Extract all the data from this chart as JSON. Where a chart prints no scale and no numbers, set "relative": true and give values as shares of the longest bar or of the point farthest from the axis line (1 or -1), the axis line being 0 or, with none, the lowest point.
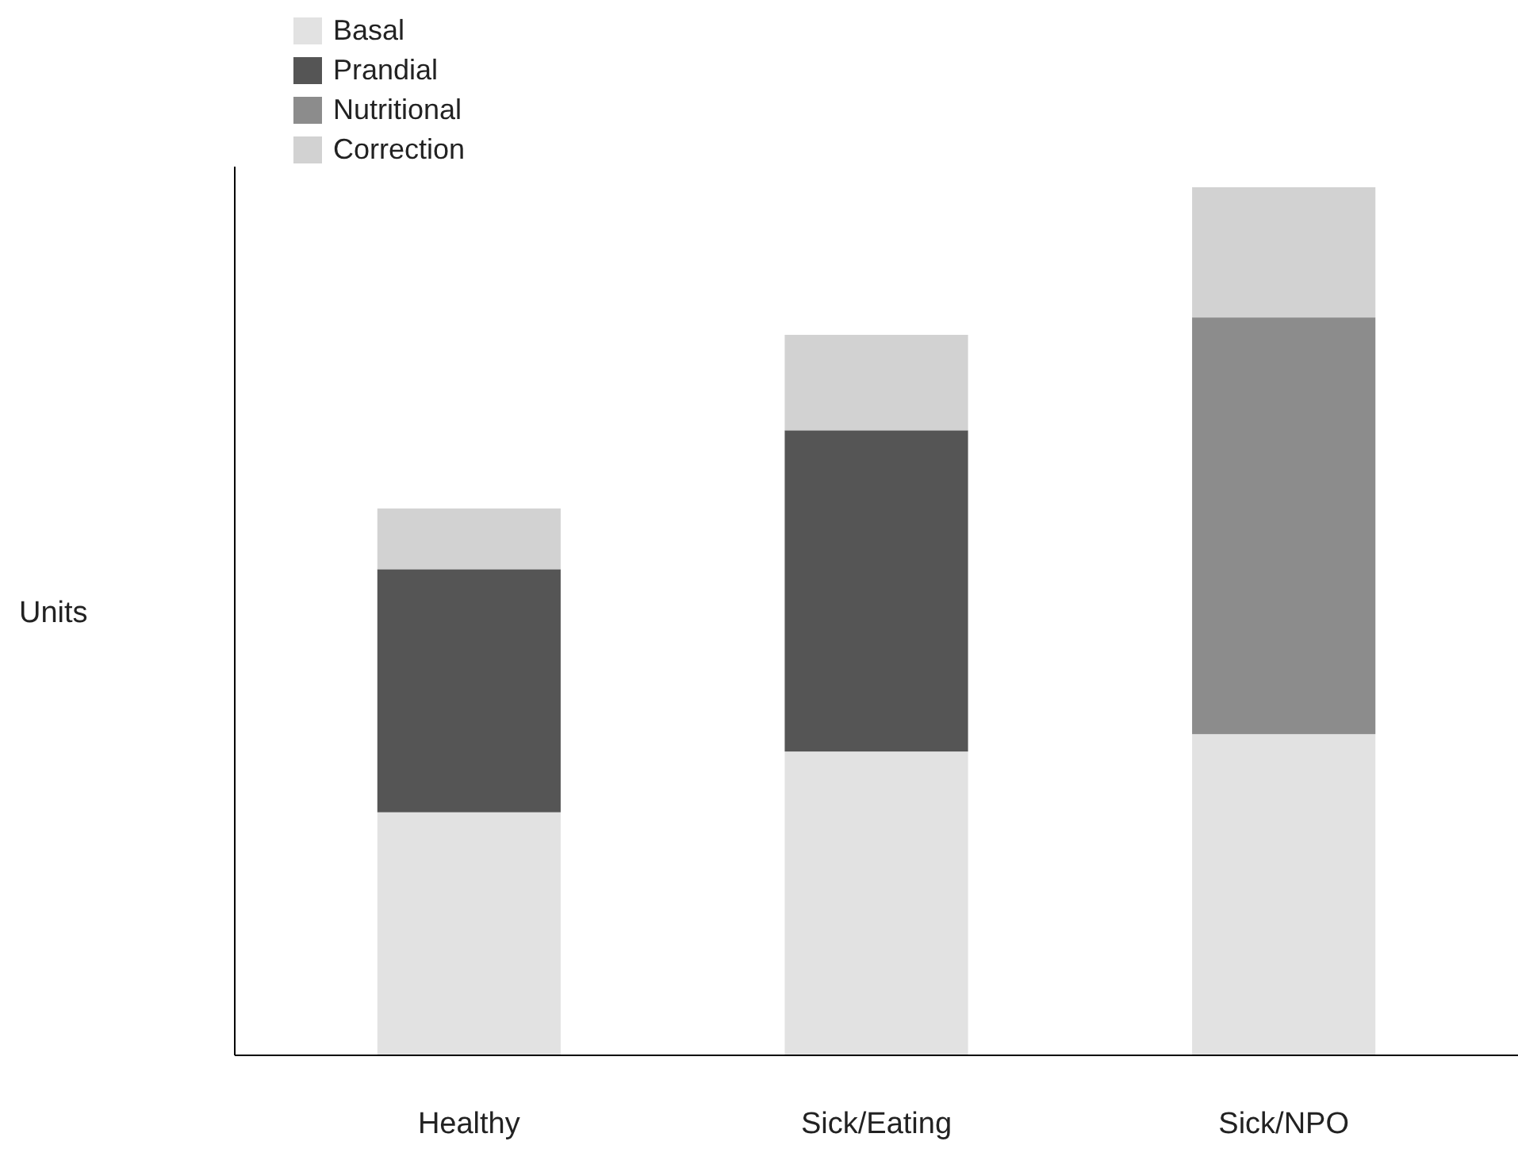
{
  "chart_data": {
    "type": "bar",
    "stacked": true,
    "relative": true,
    "ylabel": "Units",
    "legend": "top left",
    "categories": [
      "Healthy",
      "Sick/Eating",
      "Sick/NPO"
    ],
    "series": [
      {
        "name": "Basal",
        "color": "#e2e2e2",
        "values": [
          0.28,
          0.35,
          0.37
        ]
      },
      {
        "name": "Prandial",
        "color": "#555555",
        "values": [
          0.28,
          0.37,
          null
        ]
      },
      {
        "name": "Nutritional",
        "color": "#8c8c8c",
        "values": [
          null,
          null,
          0.48
        ]
      },
      {
        "name": "Correction",
        "color": "#d2d2d2",
        "values": [
          0.07,
          0.11,
          0.15
        ]
      }
    ]
  }
}
